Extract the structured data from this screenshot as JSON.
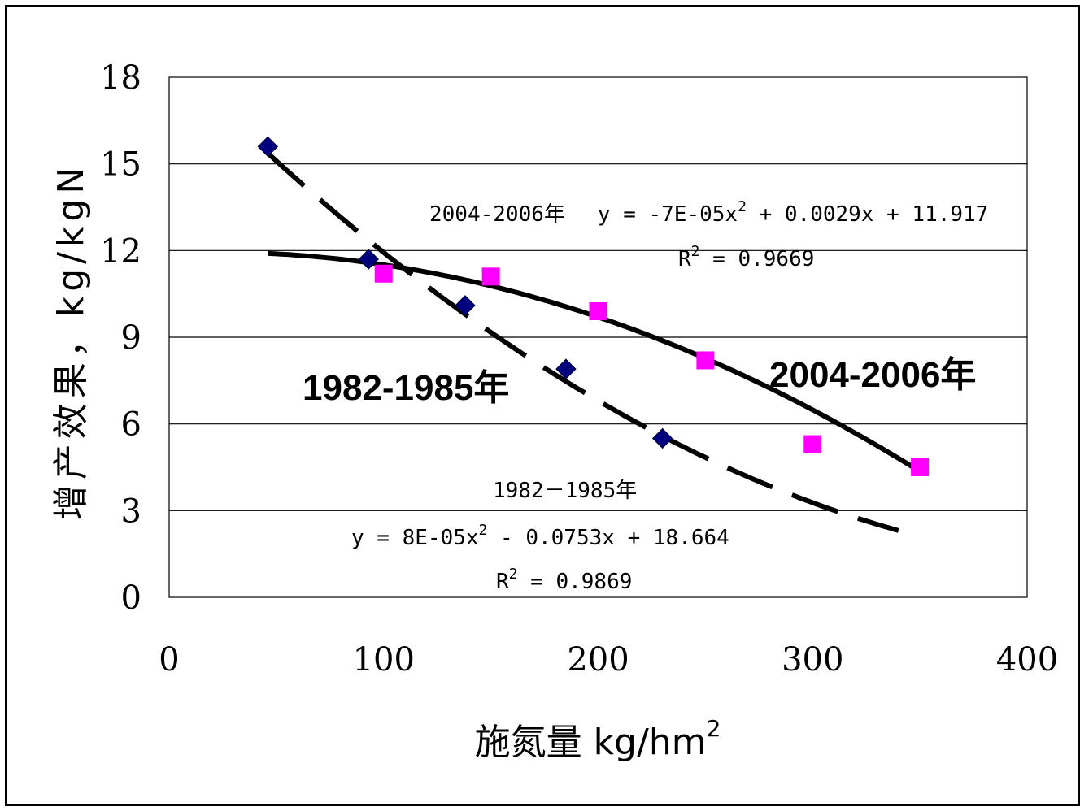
{
  "chart_data": {
    "type": "scatter",
    "title": "",
    "xlabel": "施氮量 kg/hm",
    "xlabel_sup": "2",
    "ylabel": "增产效果，kg/kgN",
    "xlim": [
      0,
      400
    ],
    "ylim": [
      0,
      18
    ],
    "x_ticks": [
      "0",
      "100",
      "200",
      "300",
      "400"
    ],
    "y_ticks": [
      "0",
      "3",
      "6",
      "9",
      "12",
      "15",
      "18"
    ],
    "grid": "horizontal",
    "series": [
      {
        "name": "1982-1985年",
        "marker": "diamond",
        "color": "#00007f",
        "trend": "dashed",
        "x": [
          46,
          93,
          138,
          185,
          230
        ],
        "y": [
          15.6,
          11.7,
          10.1,
          7.9,
          5.5
        ]
      },
      {
        "name": "2004-2006年",
        "marker": "square",
        "color": "#ff00ff",
        "trend": "solid",
        "x": [
          100,
          150,
          200,
          250,
          300,
          350
        ],
        "y": [
          11.2,
          11.1,
          9.9,
          8.2,
          5.3,
          4.5
        ]
      }
    ],
    "annotations": {
      "eq2004_line1_label": "2004-2006年",
      "eq2004_line1_eq": "y = -7E-05x",
      "eq2004_line1_sup": "2",
      "eq2004_line1_rest": " + 0.0029x + 11.917",
      "eq2004_r2_pre": "R",
      "eq2004_r2_sup": "2",
      "eq2004_r2_rest": " = 0.9669",
      "eq1982_label": "1982－1985年",
      "eq1982_eq": "y = 8E-05x",
      "eq1982_sup": "2",
      "eq1982_rest": " - 0.0753x + 18.664",
      "eq1982_r2_pre": "R",
      "eq1982_r2_sup": "2",
      "eq1982_r2_rest": " = 0.9869",
      "big1982": "1982-1985年",
      "big2004": "2004-2006年"
    },
    "trendlines": [
      {
        "series": "1982-1985年",
        "a": 8e-05,
        "b": -0.0753,
        "c": 18.664,
        "xmin": 46,
        "xmax": 340
      },
      {
        "series": "2004-2006年",
        "a": -7e-05,
        "b": 0.0029,
        "c": 11.917,
        "xmin": 46,
        "xmax": 350
      }
    ]
  }
}
